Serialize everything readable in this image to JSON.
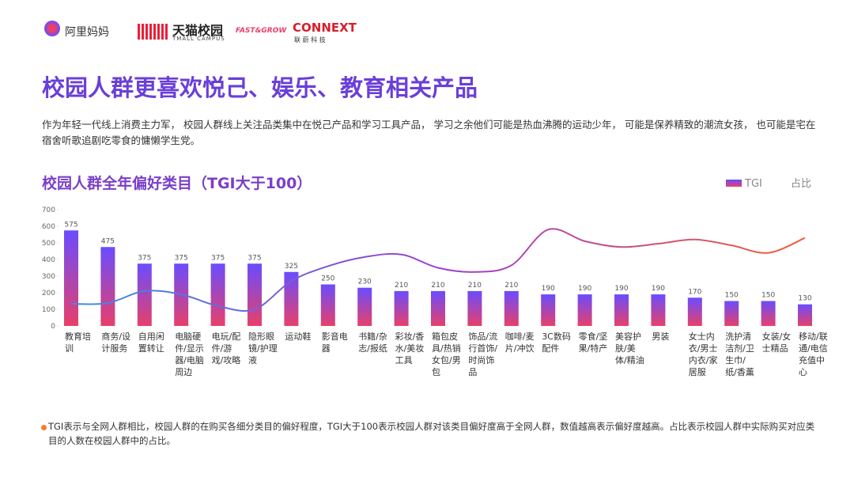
{
  "header": {
    "logos": [
      "阿里妈妈",
      "天猫校园",
      "TMALL CAMPUS",
      "FAST&GROW",
      "CONNEXT",
      "联 蔚 科 技"
    ]
  },
  "title": "校园人群更喜欢悦己、娱乐、教育相关产品",
  "description": "作为年轻一代线上消费主力军， 校园人群线上关注品类集中在悦己产品和学习工具产品， 学习之余他们可能是热血沸腾的运动少年， 可能是保养精致的潮流女孩， 也可能是宅在宿舍听歌追剧吃零食的慵懒学生党。",
  "footnote": "TGI表示与全网人群相比，校园人群的在购买各细分类目的偏好程度，TGI大于100表示校园人群对该类目偏好度高于全网人群，数值越高表示偏好度越高。占比表示校园人群中实际购买对应类目的人数在校园人群中的占比。",
  "chart_data": {
    "type": "bar-line",
    "title": "校园人群全年偏好类目（TGI大于100）",
    "categories": [
      "教育培训",
      "商务/设计服务",
      "自用闲置转让",
      "电脑硬件/显示器/电脑周边",
      "电玩/配件/游戏/攻略",
      "隐形眼镜/护理液",
      "运动鞋",
      "影音电器",
      "书籍/杂志/报纸",
      "彩妆/香水/美妆工具",
      "箱包皮具/热销女包/男包",
      "饰品/流行首饰/时尚饰品",
      "咖啡/麦片/冲饮",
      "3C数码配件",
      "零食/坚果/特产",
      "美容护肤/美体/精油",
      "男装",
      "女士内衣/男士内衣/家居服",
      "洗护清洁剂/卫生巾/纸/香薰",
      "女装/女士精品",
      "移动/联通/电信充值中心"
    ],
    "series": [
      {
        "name": "TGI",
        "type": "bar",
        "colors": [
          "#6a4cff",
          "#e8406a"
        ],
        "values": [
          575,
          475,
          375,
          375,
          375,
          375,
          325,
          250,
          230,
          210,
          210,
          210,
          210,
          190,
          190,
          190,
          190,
          170,
          150,
          150,
          130
        ]
      },
      {
        "name": "占比",
        "type": "line",
        "colors": [
          "#3a8ee6",
          "#9b3fd0",
          "#f0603a"
        ],
        "values": [
          133,
          138,
          210,
          190,
          120,
          100,
          270,
          360,
          415,
          430,
          350,
          325,
          365,
          580,
          510,
          475,
          495,
          520,
          485,
          440,
          530
        ]
      }
    ],
    "ylim": [
      0,
      700
    ],
    "yticks": [
      0,
      100,
      200,
      300,
      400,
      500,
      600,
      700
    ],
    "legend": "top-right"
  }
}
